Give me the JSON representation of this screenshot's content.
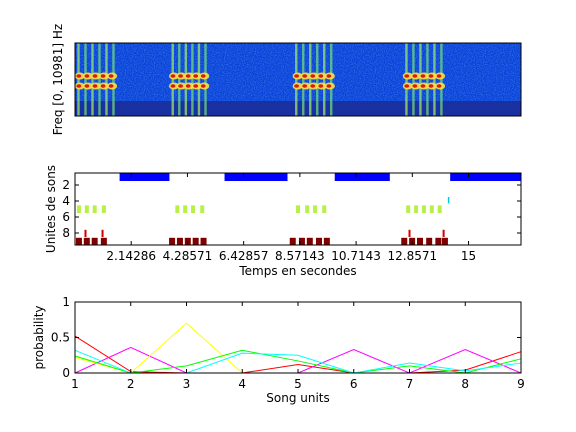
{
  "colors": {
    "spec_bg": "#0a3fd8",
    "spec_band": "#1b2e9a",
    "blue_bar": "#0000ff",
    "yellow_green": "#b7f047",
    "dark_red": "#800000",
    "red": "#d00000",
    "cyan": "#00c8e0",
    "axis": "#000000"
  },
  "chart_data": [
    {
      "type": "heatmap",
      "title": "",
      "ylabel": "Freq [0, 10981] Hz",
      "xlim": [
        0,
        17
      ],
      "song_bursts_seconds": [
        [
          0.0,
          1.6
        ],
        [
          3.6,
          5.1
        ],
        [
          8.3,
          9.9
        ],
        [
          12.5,
          14.1
        ]
      ]
    },
    {
      "type": "scatter",
      "xlabel": "Temps en secondes",
      "ylabel": "Unites de sons",
      "xlim": [
        0,
        17
      ],
      "ylim": [
        9.5,
        0.5
      ],
      "yticks": [
        "2",
        "4",
        "6",
        "8"
      ],
      "xticks": [
        "2.14286",
        "4.28571",
        "6.42857",
        "8.57143",
        "10.7143",
        "12.8571",
        "15"
      ],
      "xtick_values": [
        2.14286,
        4.28571,
        6.42857,
        8.57143,
        10.7143,
        12.8571,
        15
      ],
      "row_bands": [
        [
          1.7,
          3.6
        ],
        [
          5.7,
          8.1
        ],
        [
          9.9,
          12.0
        ],
        [
          14.3,
          17.0
        ]
      ],
      "unit5_times": [
        0.15,
        0.45,
        0.75,
        1.1,
        3.9,
        4.2,
        4.5,
        4.85,
        8.5,
        8.85,
        9.15,
        9.5,
        12.7,
        13.0,
        13.3,
        13.6,
        13.9
      ],
      "unit9_times": [
        0.15,
        0.45,
        0.75,
        1.1,
        3.7,
        4.0,
        4.3,
        4.6,
        4.9,
        8.3,
        8.65,
        8.95,
        9.3,
        9.6,
        12.55,
        12.85,
        13.15,
        13.5,
        13.85,
        14.1
      ],
      "unit8_times": [
        0.4,
        1.05,
        12.75,
        14.05
      ],
      "unit4_times": [
        14.25
      ]
    },
    {
      "type": "line",
      "xlabel": "Song units",
      "ylabel": "probability",
      "xlim": [
        1,
        9
      ],
      "ylim": [
        0,
        1
      ],
      "x": [
        1,
        2,
        3,
        4,
        5,
        6,
        7,
        8,
        9
      ],
      "xticks": [
        "1",
        "2",
        "3",
        "4",
        "5",
        "6",
        "7",
        "8",
        "9"
      ],
      "yticks": [
        "0",
        "0.5",
        "1"
      ],
      "series": [
        {
          "color": "#ff0000",
          "values": [
            0.52,
            0.02,
            0.0,
            0.0,
            0.12,
            0.0,
            0.0,
            0.04,
            0.3
          ]
        },
        {
          "color": "#ff00ff",
          "values": [
            0.0,
            0.36,
            0.0,
            0.0,
            0.0,
            0.33,
            0.0,
            0.33,
            0.0
          ]
        },
        {
          "color": "#ffff00",
          "values": [
            0.22,
            0.0,
            0.7,
            0.0,
            0.0,
            0.0,
            0.0,
            0.0,
            0.0
          ]
        },
        {
          "color": "#00ff00",
          "values": [
            0.24,
            0.0,
            0.1,
            0.32,
            0.17,
            0.0,
            0.1,
            0.0,
            0.2
          ]
        },
        {
          "color": "#00ffff",
          "values": [
            0.32,
            0.0,
            0.0,
            0.28,
            0.25,
            0.0,
            0.14,
            0.03,
            0.14
          ]
        }
      ]
    }
  ]
}
